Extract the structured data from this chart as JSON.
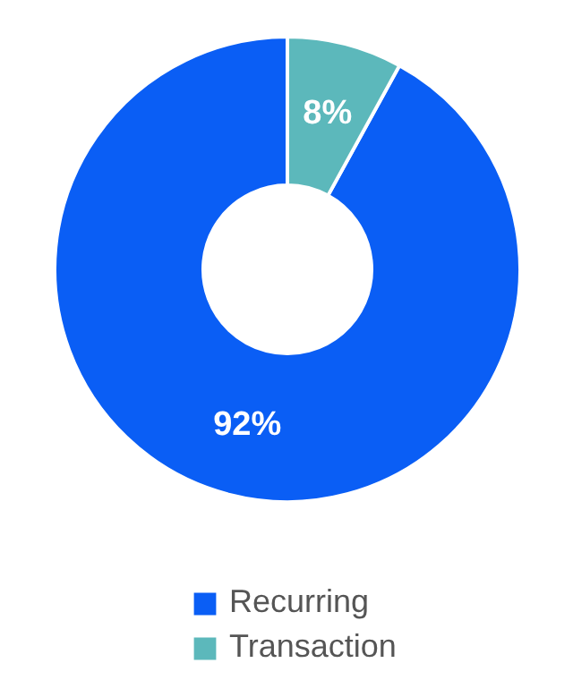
{
  "chart_data": {
    "type": "donut",
    "categories": [
      "Recurring",
      "Transaction"
    ],
    "values": [
      92,
      8
    ],
    "colors": [
      "#0a5ef5",
      "#5cb8bb"
    ],
    "value_labels": [
      "92%",
      "8%"
    ],
    "legend": "bottom"
  }
}
